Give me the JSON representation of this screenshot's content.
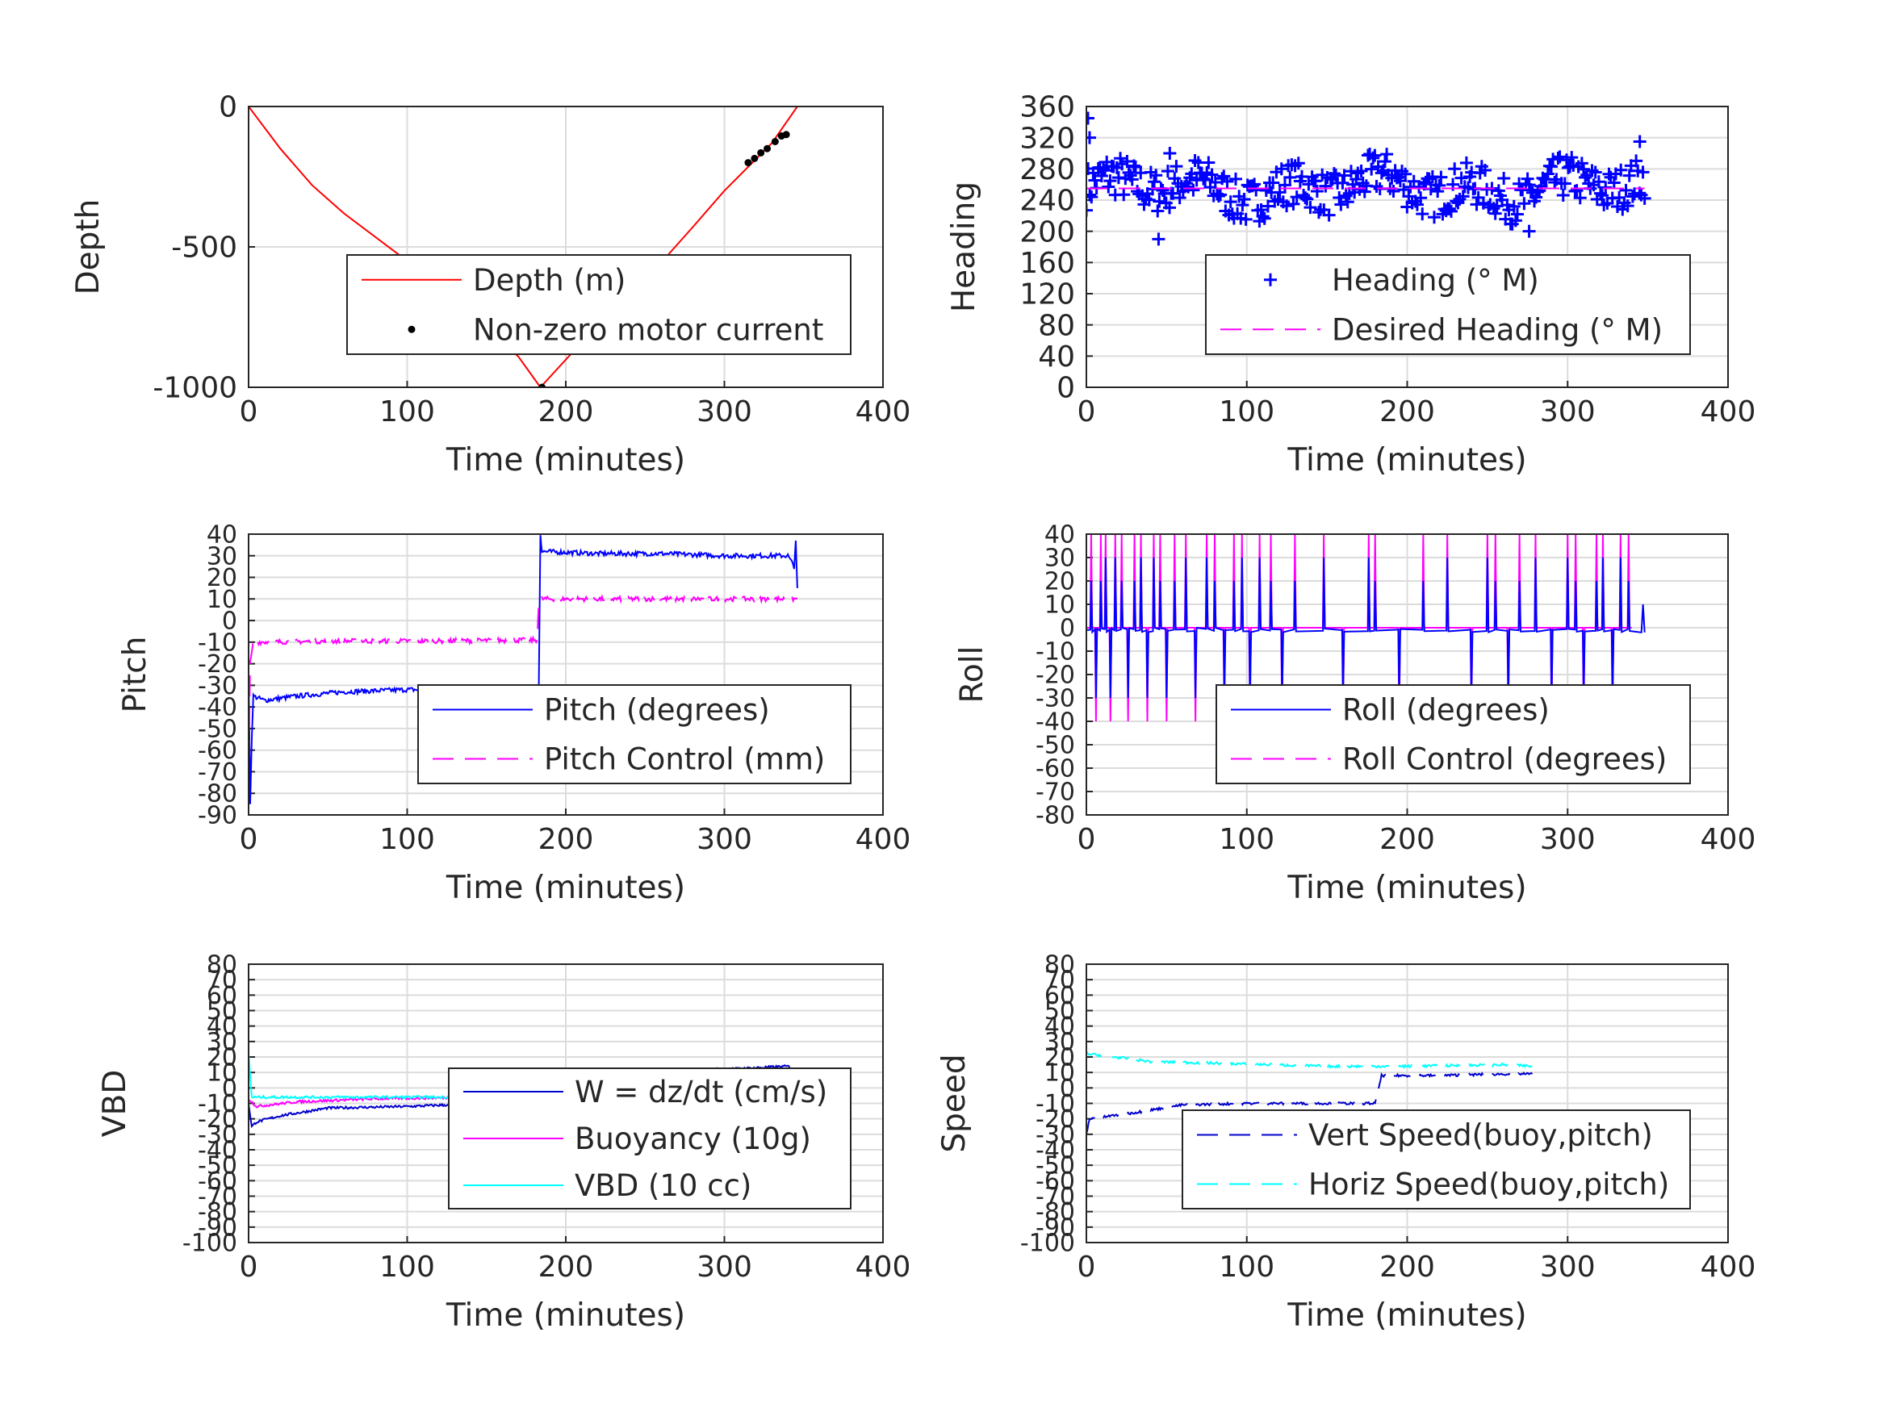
{
  "chart_data": [
    {
      "type": "line",
      "xlabel": "Time (minutes)",
      "ylabel": "Depth",
      "xlim": [
        0,
        400
      ],
      "ylim": [
        -1000,
        0
      ],
      "xticks": [
        "0",
        "100",
        "200",
        "300",
        "400"
      ],
      "yticks": [
        "0",
        "-500",
        "-1000"
      ],
      "legend": "center",
      "series": [
        {
          "name": "Depth (m)",
          "style": "solid",
          "color": "#ff0000",
          "points": [
            [
              0,
              0
            ],
            [
              20,
              -150
            ],
            [
              40,
              -280
            ],
            [
              60,
              -380
            ],
            [
              100,
              -550
            ],
            [
              140,
              -740
            ],
            [
              170,
              -890
            ],
            [
              184,
              -1000
            ],
            [
              210,
              -840
            ],
            [
              250,
              -620
            ],
            [
              280,
              -430
            ],
            [
              300,
              -300
            ],
            [
              330,
              -130
            ],
            [
              346,
              0
            ]
          ]
        },
        {
          "name": "Non-zero motor current",
          "style": "dots",
          "color": "#000000",
          "points": [
            [
              185,
              -1000
            ],
            [
              315,
              -200
            ],
            [
              319,
              -185
            ],
            [
              323,
              -165
            ],
            [
              327,
              -150
            ],
            [
              332,
              -125
            ],
            [
              336,
              -105
            ],
            [
              339,
              -100
            ]
          ]
        }
      ]
    },
    {
      "type": "scatter",
      "xlabel": "Time (minutes)",
      "ylabel": "Heading",
      "xlim": [
        0,
        400
      ],
      "ylim": [
        0,
        360
      ],
      "xticks": [
        "0",
        "100",
        "200",
        "300",
        "400"
      ],
      "yticks": [
        "0",
        "40",
        "80",
        "120",
        "160",
        "200",
        "240",
        "280",
        "320",
        "360"
      ],
      "legend": "center",
      "series": [
        {
          "name": "Heading (° M)",
          "style": "plus",
          "color": "#0000ff",
          "mean": 255,
          "spread": 35,
          "xrange": [
            0,
            348
          ],
          "count": 330,
          "outliers": [
            [
              1,
              345
            ],
            [
              2,
              320
            ],
            [
              45,
              190
            ],
            [
              52,
              300
            ],
            [
              276,
              200
            ],
            [
              345,
              315
            ]
          ]
        },
        {
          "name": "Desired Heading (° M)",
          "style": "dashed",
          "color": "#ff00ff",
          "points": [
            [
              0,
              255
            ],
            [
              348,
              255
            ]
          ]
        }
      ]
    },
    {
      "type": "line",
      "xlabel": "Time (minutes)",
      "ylabel": "Pitch",
      "xlim": [
        0,
        400
      ],
      "ylim": [
        -90,
        40
      ],
      "xticks": [
        "0",
        "100",
        "200",
        "300",
        "400"
      ],
      "yticks": [
        "40",
        "30",
        "20",
        "10",
        "0",
        "-10",
        "-20",
        "-30",
        "-40",
        "-50",
        "-60",
        "-70",
        "-80",
        "-90"
      ],
      "legend": "center",
      "series": [
        {
          "name": "Pitch (degrees)",
          "style": "solid",
          "color": "#0000ff",
          "points": [
            [
              0,
              -25
            ],
            [
              1,
              -85
            ],
            [
              2,
              -55
            ],
            [
              3,
              -35
            ],
            [
              10,
              -37
            ],
            [
              30,
              -35
            ],
            [
              60,
              -33
            ],
            [
              100,
              -32
            ],
            [
              150,
              -32
            ],
            [
              182,
              -31
            ],
            [
              183,
              -30
            ],
            [
              184,
              40
            ],
            [
              185,
              32
            ],
            [
              220,
              31
            ],
            [
              260,
              31
            ],
            [
              300,
              30
            ],
            [
              340,
              30
            ],
            [
              344,
              25
            ],
            [
              345,
              37
            ],
            [
              346,
              15
            ]
          ]
        },
        {
          "name": "Pitch Control (mm)",
          "style": "dashed",
          "color": "#ff00ff",
          "points": [
            [
              0,
              -65
            ],
            [
              1,
              -20
            ],
            [
              3,
              -10
            ],
            [
              60,
              -9.5
            ],
            [
              120,
              -9.5
            ],
            [
              182,
              -9
            ],
            [
              183,
              10
            ],
            [
              250,
              10
            ],
            [
              346,
              10
            ]
          ]
        }
      ]
    },
    {
      "type": "line",
      "xlabel": "Time (minutes)",
      "ylabel": "Roll",
      "xlim": [
        0,
        400
      ],
      "ylim": [
        -80,
        40
      ],
      "xticks": [
        "0",
        "100",
        "200",
        "300",
        "400"
      ],
      "yticks": [
        "40",
        "30",
        "20",
        "10",
        "0",
        "-10",
        "-20",
        "-30",
        "-40",
        "-50",
        "-60",
        "-70",
        "-80"
      ],
      "legend": "center",
      "series": [
        {
          "name": "Roll (degrees)",
          "style": "solid",
          "color": "#0000ff",
          "baseline": -1,
          "xrange": [
            0,
            348
          ],
          "end": [
            [
              346,
              -2
            ],
            [
              347,
              10
            ],
            [
              348,
              -2
            ]
          ]
        },
        {
          "name": "Roll Control (degrees)",
          "style": "dashed",
          "color": "#ff00ff",
          "baseline": 0,
          "xrange": [
            0,
            340
          ],
          "amplitude": [
            -40,
            40
          ]
        }
      ],
      "spikes": [
        3,
        6,
        9,
        12,
        15,
        18,
        22,
        26,
        30,
        34,
        38,
        42,
        46,
        50,
        55,
        62,
        68,
        75,
        80,
        86,
        92,
        97,
        102,
        108,
        115,
        122,
        130,
        148,
        160,
        176,
        180,
        195,
        210,
        225,
        240,
        250,
        255,
        263,
        270,
        280,
        290,
        300,
        305,
        310,
        318,
        322,
        328,
        333,
        338
      ]
    },
    {
      "type": "line",
      "xlabel": "Time (minutes)",
      "ylabel": "VBD",
      "xlim": [
        0,
        400
      ],
      "ylim": [
        -100,
        80
      ],
      "xticks": [
        "0",
        "100",
        "200",
        "300",
        "400"
      ],
      "yticks": [
        "80",
        "70",
        "60",
        "50",
        "40",
        "30",
        "20",
        "10",
        "0",
        "-10",
        "-20",
        "-30",
        "-40",
        "-50",
        "-60",
        "-70",
        "-80",
        "-90",
        "-100"
      ],
      "legend": "center",
      "series": [
        {
          "name": "W = dz/dt (cm/s)",
          "style": "solid",
          "color": "#0000cc",
          "points": [
            [
              0,
              -10
            ],
            [
              2,
              -25
            ],
            [
              5,
              -22
            ],
            [
              20,
              -18
            ],
            [
              50,
              -13
            ],
            [
              100,
              -12
            ],
            [
              150,
              -10
            ],
            [
              182,
              -9
            ],
            [
              184,
              10
            ],
            [
              220,
              11
            ],
            [
              260,
              11
            ],
            [
              300,
              12
            ],
            [
              340,
              14
            ],
            [
              346,
              10
            ]
          ]
        },
        {
          "name": "Buoyancy (10g)",
          "style": "solid",
          "color": "#ff00ff",
          "points": [
            [
              0,
              -7
            ],
            [
              5,
              -12
            ],
            [
              30,
              -9
            ],
            [
              80,
              -7
            ],
            [
              150,
              -6
            ],
            [
              182,
              -5
            ],
            [
              184,
              4
            ],
            [
              250,
              6
            ],
            [
              346,
              9
            ]
          ]
        },
        {
          "name": "VBD (10 cc)",
          "style": "solid",
          "color": "#00ffff",
          "points": [
            [
              0,
              22
            ],
            [
              2,
              -6
            ],
            [
              50,
              -6
            ],
            [
              150,
              -6
            ],
            [
              182,
              -6
            ],
            [
              184,
              4
            ],
            [
              250,
              5
            ],
            [
              346,
              10
            ]
          ]
        }
      ]
    },
    {
      "type": "line",
      "xlabel": "Time (minutes)",
      "ylabel": "Speed",
      "xlim": [
        0,
        400
      ],
      "ylim": [
        -100,
        80
      ],
      "xticks": [
        "0",
        "100",
        "200",
        "300",
        "400"
      ],
      "yticks": [
        "80",
        "70",
        "60",
        "50",
        "40",
        "30",
        "20",
        "10",
        "0",
        "-10",
        "-20",
        "-30",
        "-40",
        "-50",
        "-60",
        "-70",
        "-80",
        "-90",
        "-100"
      ],
      "legend": "center",
      "series": [
        {
          "name": "Vert Speed(buoy,pitch)",
          "style": "dashed",
          "color": "#0000cc",
          "points": [
            [
              0,
              -30
            ],
            [
              2,
              -20
            ],
            [
              30,
              -16
            ],
            [
              60,
              -11
            ],
            [
              100,
              -10
            ],
            [
              150,
              -10
            ],
            [
              180,
              -10
            ],
            [
              184,
              8
            ],
            [
              220,
              8
            ],
            [
              260,
              9
            ],
            [
              278,
              9
            ]
          ]
        },
        {
          "name": "Horiz Speed(buoy,pitch)",
          "style": "dashed",
          "color": "#00ffff",
          "points": [
            [
              0,
              22
            ],
            [
              10,
              21
            ],
            [
              40,
              17
            ],
            [
              80,
              16
            ],
            [
              150,
              14
            ],
            [
              200,
              14
            ],
            [
              260,
              15
            ],
            [
              278,
              14
            ]
          ]
        }
      ]
    }
  ]
}
